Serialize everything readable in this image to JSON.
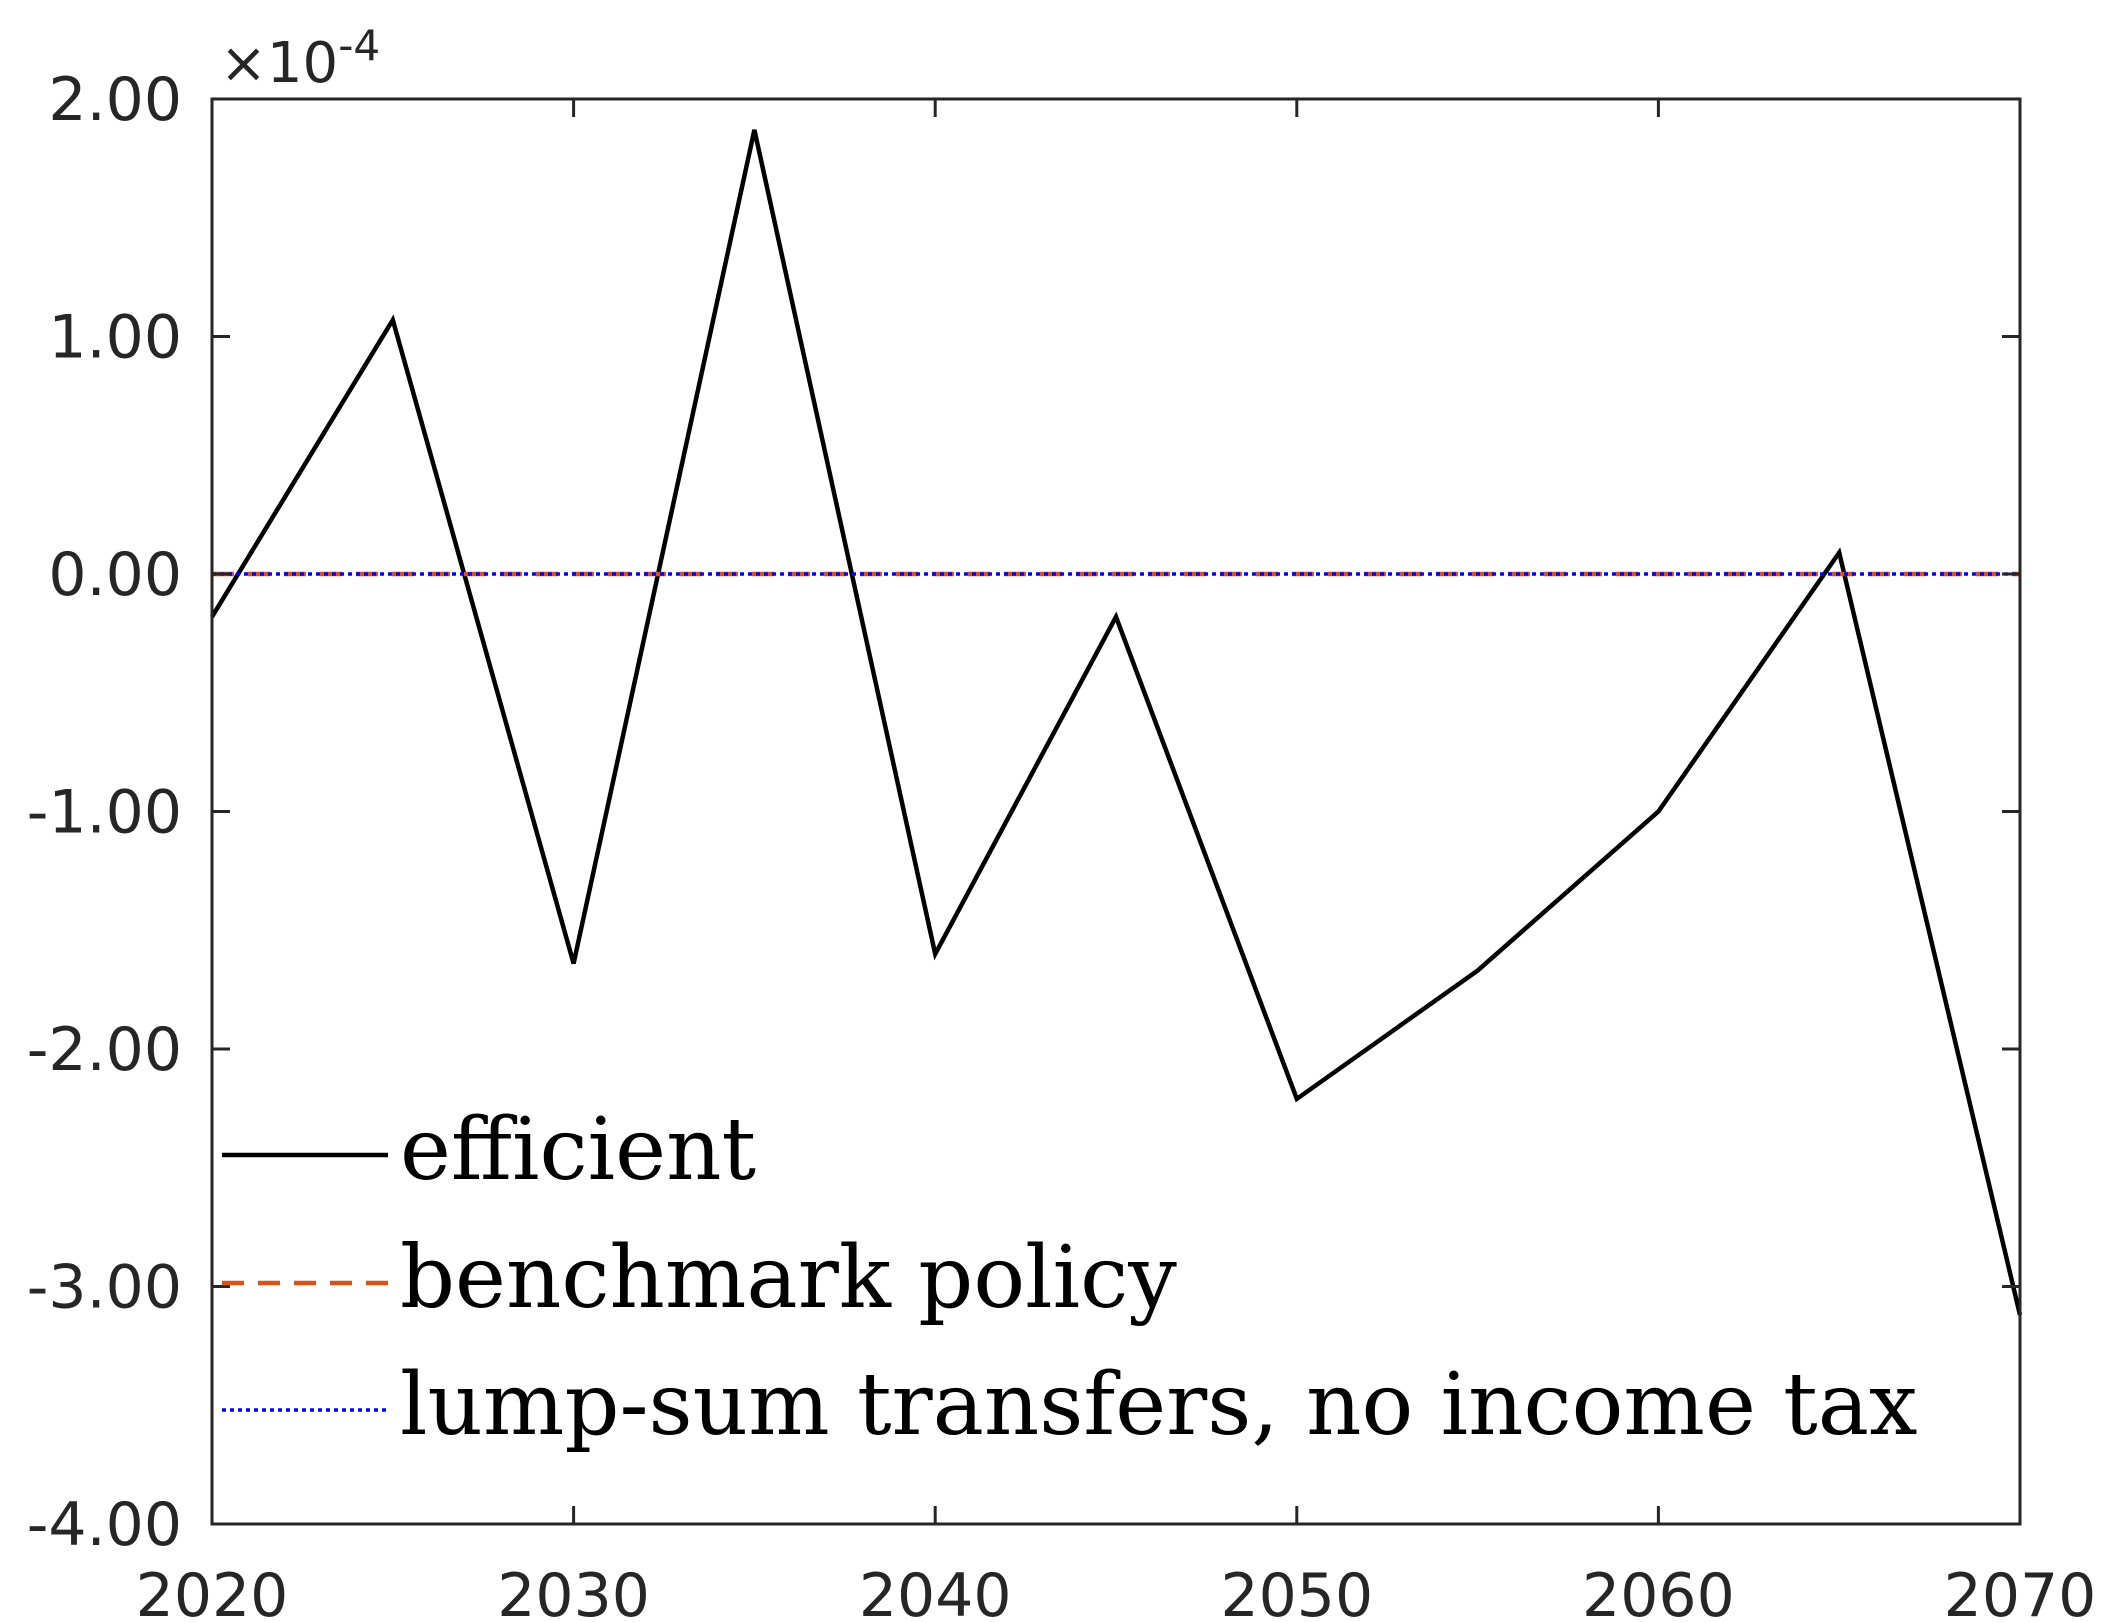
{
  "chart_data": {
    "type": "line",
    "title": "",
    "xlabel": "",
    "ylabel": "",
    "xlim": [
      2020,
      2070
    ],
    "ylim": [
      -4.0,
      2.0
    ],
    "y_multiplier_label": "×10",
    "y_multiplier_exponent": "-4",
    "x_ticks": [
      2020,
      2030,
      2040,
      2050,
      2060,
      2070
    ],
    "x_tick_labels": [
      "2020",
      "2030",
      "2040",
      "2050",
      "2060",
      "2070"
    ],
    "y_ticks": [
      2,
      1,
      0,
      -1,
      -2,
      -3,
      -4
    ],
    "y_tick_labels": [
      "2.00",
      "1.00",
      "0.00",
      "-1.00",
      "-2.00",
      "-3.00",
      "-4.00"
    ],
    "grid": false,
    "legend_position": "bottom-left",
    "x": [
      2020,
      2025,
      2030,
      2035,
      2040,
      2045,
      2050,
      2055,
      2060,
      2065,
      2070
    ],
    "series": [
      {
        "name": "efficient",
        "color": "#000000",
        "style": "solid",
        "values": [
          -0.18,
          1.07,
          -1.64,
          1.87,
          -1.6,
          -0.18,
          -2.21,
          -1.67,
          -1.0,
          0.09,
          -3.12
        ]
      },
      {
        "name": "benchmark policy",
        "color": "#D95319",
        "style": "dashed",
        "values": [
          0,
          0,
          0,
          0,
          0,
          0,
          0,
          0,
          0,
          0,
          0
        ]
      },
      {
        "name": "lump-sum transfers, no income tax",
        "color": "#0000FF",
        "style": "dotted",
        "values": [
          0,
          0,
          0,
          0,
          0,
          0,
          0,
          0,
          0,
          0,
          0
        ]
      }
    ]
  }
}
